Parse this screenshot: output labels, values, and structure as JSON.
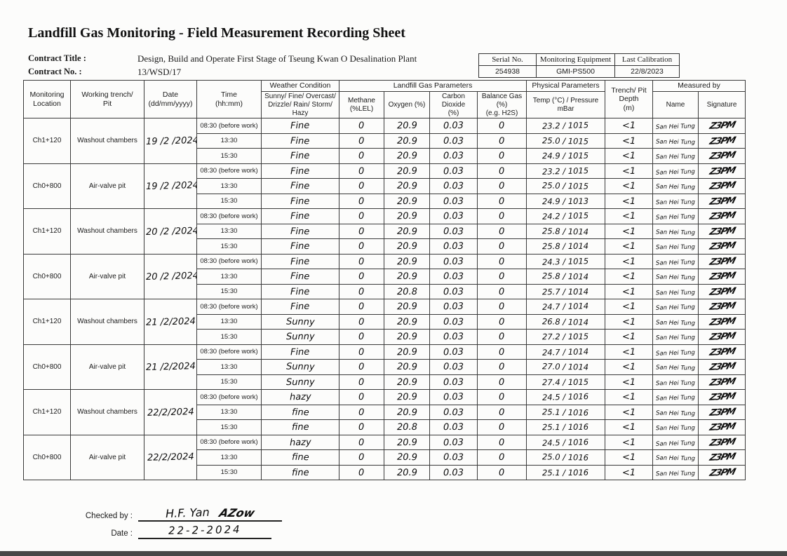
{
  "page": {
    "title": "Landfill Gas Monitoring - Field Measurement Recording Sheet"
  },
  "contract": {
    "title_label": "Contract Title :",
    "title_value": "Design, Build and Operate First Stage of Tseung Kwan O Desalination Plant",
    "no_label": "Contract No. :",
    "no_value": "13/WSD/17"
  },
  "equipment": {
    "headers": [
      "Serial No.",
      "Monitoring Equipment",
      "Last Calibration"
    ],
    "values": [
      "254938",
      "GMI-PS500",
      "22/8/2023"
    ]
  },
  "table": {
    "headers": {
      "location": "Monitoring\nLocation",
      "trench": "Working trench/\nPit",
      "date": "Date\n(dd/mm/yyyy)",
      "time": "Time\n(hh:mm)",
      "weather_group": "Weather Condition",
      "weather_sub": "Sunny/ Fine/ Overcast/\nDrizzle/ Rain/ Storm/ Hazy",
      "gas_group": "Landfill Gas Parameters",
      "methane": "Methane (%LEL)",
      "oxygen": "Oxygen (%)",
      "co2": "Carbon Dioxide\n(%)",
      "balance": "Balance Gas (%)\n(e.g. H2S)",
      "physical_group": "Physical Parameters",
      "temp_pressure": "Temp (°C) / Pressure\nmBar",
      "depth": "Trench/ Pit Depth\n(m)",
      "measured_group": "Measured by",
      "name": "Name",
      "signature": "Signature"
    },
    "groups": [
      {
        "location": "Ch1+120",
        "trench": "Washout chambers",
        "date": "19 /2 /2024",
        "rows": [
          {
            "time": "08:30 (before work)",
            "weather": "Fine",
            "methane": "0",
            "oxygen": "20.9",
            "co2": "0.03",
            "balance": "0",
            "temp_pressure": "23.2 / 1015",
            "depth": "<1",
            "name": "San Hei Tung",
            "signature": "Z3PM"
          },
          {
            "time": "13:30",
            "weather": "Fine",
            "methane": "0",
            "oxygen": "20.9",
            "co2": "0.03",
            "balance": "0",
            "temp_pressure": "25.0 / 1015",
            "depth": "<1",
            "name": "San Hei Tung",
            "signature": "Z3PM"
          },
          {
            "time": "15:30",
            "weather": "Fine",
            "methane": "0",
            "oxygen": "20.9",
            "co2": "0.03",
            "balance": "0",
            "temp_pressure": "24.9 / 1015",
            "depth": "<1",
            "name": "San Hei Tung",
            "signature": "Z3PM"
          }
        ]
      },
      {
        "location": "Ch0+800",
        "trench": "Air-valve pit",
        "date": "19 /2 /2024",
        "rows": [
          {
            "time": "08:30 (before work)",
            "weather": "Fine",
            "methane": "0",
            "oxygen": "20.9",
            "co2": "0.03",
            "balance": "0",
            "temp_pressure": "23.2 / 1015",
            "depth": "<1",
            "name": "San Hei Tung",
            "signature": "Z3PM"
          },
          {
            "time": "13:30",
            "weather": "Fine",
            "methane": "0",
            "oxygen": "20.9",
            "co2": "0.03",
            "balance": "0",
            "temp_pressure": "25.0 / 1015",
            "depth": "<1",
            "name": "San Hei Tung",
            "signature": "Z3PM"
          },
          {
            "time": "15:30",
            "weather": "Fine",
            "methane": "0",
            "oxygen": "20.9",
            "co2": "0.03",
            "balance": "0",
            "temp_pressure": "24.9 / 1013",
            "depth": "<1",
            "name": "San Hei Tung",
            "signature": "Z3PM"
          }
        ]
      },
      {
        "location": "Ch1+120",
        "trench": "Washout chambers",
        "date": "20 /2 /2024",
        "rows": [
          {
            "time": "08:30 (before work)",
            "weather": "Fine",
            "methane": "0",
            "oxygen": "20.9",
            "co2": "0.03",
            "balance": "0",
            "temp_pressure": "24.2 / 1015",
            "depth": "<1",
            "name": "San Hei Tung",
            "signature": "Z3PM"
          },
          {
            "time": "13:30",
            "weather": "Fine",
            "methane": "0",
            "oxygen": "20.9",
            "co2": "0.03",
            "balance": "0",
            "temp_pressure": "25.8 / 1014",
            "depth": "<1",
            "name": "San Hei Tung",
            "signature": "Z3PM"
          },
          {
            "time": "15:30",
            "weather": "Fine",
            "methane": "0",
            "oxygen": "20.9",
            "co2": "0.03",
            "balance": "0",
            "temp_pressure": "25.8 / 1014",
            "depth": "<1",
            "name": "San Hei Tung",
            "signature": "Z3PM"
          }
        ]
      },
      {
        "location": "Ch0+800",
        "trench": "Air-valve pit",
        "date": "20 /2 /2024",
        "rows": [
          {
            "time": "08:30 (before work)",
            "weather": "Fine",
            "methane": "0",
            "oxygen": "20.9",
            "co2": "0.03",
            "balance": "0",
            "temp_pressure": "24.3 / 1015",
            "depth": "<1",
            "name": "San Hei Tung",
            "signature": "Z3PM"
          },
          {
            "time": "13:30",
            "weather": "Fine",
            "methane": "0",
            "oxygen": "20.9",
            "co2": "0.03",
            "balance": "0",
            "temp_pressure": "25.8 / 1014",
            "depth": "<1",
            "name": "San Hei Tung",
            "signature": "Z3PM"
          },
          {
            "time": "15:30",
            "weather": "Fine",
            "methane": "0",
            "oxygen": "20.8",
            "co2": "0.03",
            "balance": "0",
            "temp_pressure": "25.7 / 1014",
            "depth": "<1",
            "name": "San Hei Tung",
            "signature": "Z3PM"
          }
        ]
      },
      {
        "location": "Ch1+120",
        "trench": "Washout chambers",
        "date": "21 /2/2024",
        "rows": [
          {
            "time": "08:30 (before work)",
            "weather": "Fine",
            "methane": "0",
            "oxygen": "20.9",
            "co2": "0.03",
            "balance": "0",
            "temp_pressure": "24.7 / 1014",
            "depth": "<1",
            "name": "San Hei Tung",
            "signature": "Z3PM"
          },
          {
            "time": "13:30",
            "weather": "Sunny",
            "methane": "0",
            "oxygen": "20.9",
            "co2": "0.03",
            "balance": "0",
            "temp_pressure": "26.8 / 1014",
            "depth": "<1",
            "name": "San Hei Tung",
            "signature": "Z3PM"
          },
          {
            "time": "15:30",
            "weather": "Sunny",
            "methane": "0",
            "oxygen": "20.9",
            "co2": "0.03",
            "balance": "0",
            "temp_pressure": "27.2 / 1015",
            "depth": "<1",
            "name": "San Hei Tung",
            "signature": "Z3PM"
          }
        ]
      },
      {
        "location": "Ch0+800",
        "trench": "Air-valve pit",
        "date": "21 /2/2024",
        "rows": [
          {
            "time": "08:30 (before work)",
            "weather": "Fine",
            "methane": "0",
            "oxygen": "20.9",
            "co2": "0.03",
            "balance": "0",
            "temp_pressure": "24.7 / 1014",
            "depth": "<1",
            "name": "San Hei Tung",
            "signature": "Z3PM"
          },
          {
            "time": "13:30",
            "weather": "Sunny",
            "methane": "0",
            "oxygen": "20.9",
            "co2": "0.03",
            "balance": "0",
            "temp_pressure": "27.0 / 1014",
            "depth": "<1",
            "name": "San Hei Tung",
            "signature": "Z3PM"
          },
          {
            "time": "15:30",
            "weather": "Sunny",
            "methane": "0",
            "oxygen": "20.9",
            "co2": "0.03",
            "balance": "0",
            "temp_pressure": "27.4 / 1015",
            "depth": "<1",
            "name": "San Hei Tung",
            "signature": "Z3PM"
          }
        ]
      },
      {
        "location": "Ch1+120",
        "trench": "Washout chambers",
        "date": "22/2/2024",
        "rows": [
          {
            "time": "08:30 (before work)",
            "weather": "hazy",
            "methane": "0",
            "oxygen": "20.9",
            "co2": "0.03",
            "balance": "0",
            "temp_pressure": "24.5 / 1016",
            "depth": "<1",
            "name": "San Hei Tung",
            "signature": "Z3PM"
          },
          {
            "time": "13:30",
            "weather": "fine",
            "methane": "0",
            "oxygen": "20.9",
            "co2": "0.03",
            "balance": "0",
            "temp_pressure": "25.1 / 1016",
            "depth": "<1",
            "name": "San Hei Tung",
            "signature": "Z3PM"
          },
          {
            "time": "15:30",
            "weather": "fine",
            "methane": "0",
            "oxygen": "20.8",
            "co2": "0.03",
            "balance": "0",
            "temp_pressure": "25.1 / 1016",
            "depth": "<1",
            "name": "San Hei Tung",
            "signature": "Z3PM"
          }
        ]
      },
      {
        "location": "Ch0+800",
        "trench": "Air-valve pit",
        "date": "22/2/2024",
        "rows": [
          {
            "time": "08:30 (before work)",
            "weather": "hazy",
            "methane": "0",
            "oxygen": "20.9",
            "co2": "0.03",
            "balance": "0",
            "temp_pressure": "24.5 / 1016",
            "depth": "<1",
            "name": "San Hei Tung",
            "signature": "Z3PM"
          },
          {
            "time": "13:30",
            "weather": "fine",
            "methane": "0",
            "oxygen": "20.9",
            "co2": "0.03",
            "balance": "0",
            "temp_pressure": "25.0 / 1016",
            "depth": "<1",
            "name": "San Hei Tung",
            "signature": "Z3PM"
          },
          {
            "time": "15:30",
            "weather": "fine",
            "methane": "0",
            "oxygen": "20.9",
            "co2": "0.03",
            "balance": "0",
            "temp_pressure": "25.1 / 1016",
            "depth": "<1",
            "name": "San Hei Tung",
            "signature": "Z3PM"
          }
        ]
      }
    ]
  },
  "footer": {
    "checked_by_label": "Checked by :",
    "checked_by_name": "H.F. Yan",
    "checked_by_signature": "AZow",
    "date_label": "Date :",
    "date_value": "22-2-2024"
  }
}
